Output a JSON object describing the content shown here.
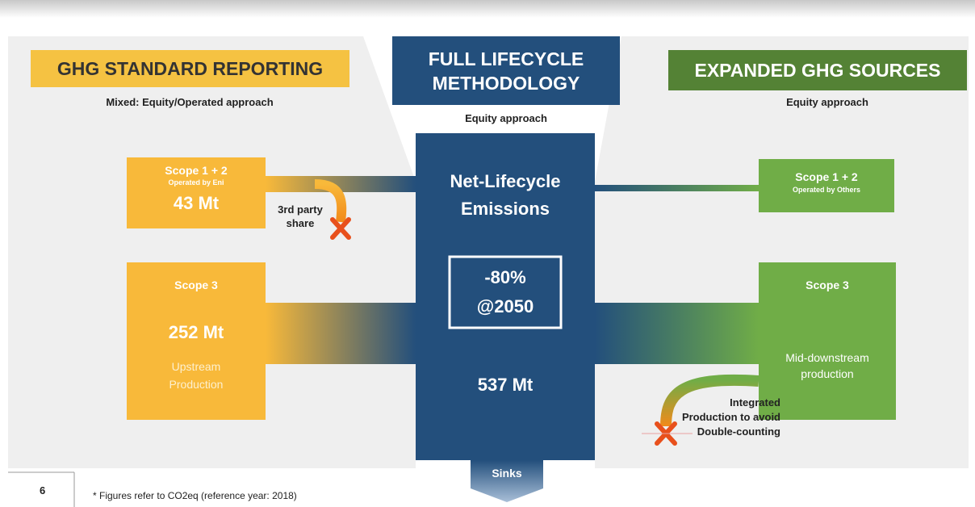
{
  "left": {
    "title": "GHG STANDARD REPORTING",
    "subtitle": "Mixed: Equity/Operated approach",
    "scope12": {
      "title": "Scope 1 + 2",
      "sub": "Operated by Eni",
      "value": "43 Mt"
    },
    "excluded": "3rd party share",
    "scope3": {
      "title": "Scope 3",
      "value": "252 Mt",
      "sub": "Upstream Production"
    }
  },
  "center": {
    "title": "FULL LIFECYCLE METHODOLOGY",
    "subtitle": "Equity approach",
    "label": "Net-Lifecycle Emissions",
    "target": "-80% @2050",
    "value": "537 Mt",
    "sinks": "Sinks"
  },
  "right": {
    "title": "EXPANDED GHG SOURCES",
    "subtitle": "Equity approach",
    "scope12": {
      "title": "Scope 1 + 2",
      "sub": "Operated by Others"
    },
    "scope3": {
      "title": "Scope 3",
      "sub": "Mid-downstream production"
    },
    "excluded": "Integrated Production to avoid Double-counting"
  },
  "footer": {
    "page": "6",
    "note": "* Figures refer to CO2eq (reference year: 2018)"
  }
}
